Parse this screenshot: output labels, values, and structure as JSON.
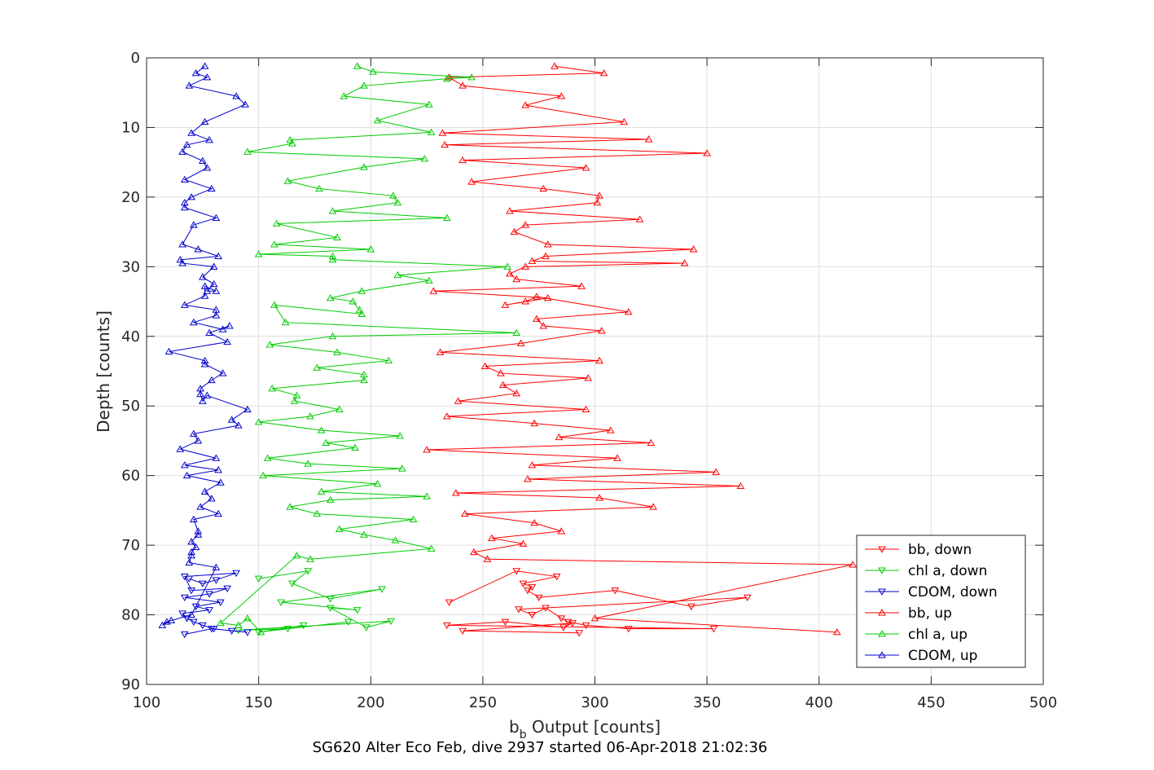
{
  "chart_data": {
    "type": "line",
    "title": "SG620 Alter Eco Feb, dive 2937 started 06-Apr-2018 21:02:36",
    "xlabel_main": "b",
    "xlabel_sub": "b",
    "xlabel_rest": " Output [counts]",
    "ylabel": "Depth [counts]",
    "xlim": [
      100,
      500
    ],
    "ylim": [
      0,
      90
    ],
    "y_reversed": true,
    "grid": true,
    "legend_position": "bottom-right",
    "x_ticks": [
      "100",
      "150",
      "200",
      "250",
      "300",
      "350",
      "400",
      "450",
      "500"
    ],
    "y_ticks": [
      "0",
      "10",
      "20",
      "30",
      "40",
      "50",
      "60",
      "70",
      "80",
      "90"
    ],
    "series": [
      {
        "name": "bb, down",
        "color": "#ff0000",
        "marker": "triangle-down",
        "x": [
          235,
          265,
          283,
          268,
          272,
          270,
          275,
          309,
          343,
          368,
          266,
          272,
          278,
          285,
          288,
          296,
          315,
          353,
          234,
          260,
          286,
          290,
          241,
          293
        ],
        "y": [
          78.2,
          73.7,
          74.5,
          75.5,
          76,
          76.5,
          77.5,
          76.5,
          78.8,
          77.5,
          79.2,
          80,
          79,
          80.5,
          81,
          81.5,
          82,
          82,
          81.5,
          81,
          81.8,
          81.2,
          82.3,
          82.6
        ]
      },
      {
        "name": "chl a, down",
        "color": "#00cc00",
        "marker": "triangle-down",
        "x": [
          150,
          172,
          165,
          182,
          205,
          160,
          194,
          182,
          198,
          209,
          141,
          163,
          170,
          150,
          190
        ],
        "y": [
          74.8,
          73.7,
          75.5,
          77.7,
          76.3,
          78.2,
          79.3,
          79,
          81.8,
          80.9,
          82.2,
          82,
          81.5,
          82.5,
          81
        ]
      },
      {
        "name": "CDOM, down",
        "color": "#0000cc",
        "marker": "triangle-down",
        "x": [
          119,
          125,
          131,
          140,
          117,
          120,
          136,
          128,
          117,
          133,
          122,
          128,
          116,
          118,
          121,
          125,
          130,
          138,
          145,
          129,
          117
        ],
        "y": [
          74.8,
          75.5,
          75,
          74,
          74.5,
          76.5,
          76.2,
          77,
          77.5,
          78.2,
          78.8,
          79.3,
          79.8,
          80.5,
          81,
          81.5,
          82,
          82.3,
          82.5,
          82,
          82.8
        ]
      },
      {
        "name": "bb, up",
        "color": "#ff0000",
        "marker": "triangle-up",
        "x": [
          282,
          304,
          235,
          241,
          285,
          269,
          313,
          232,
          324,
          233,
          350,
          241,
          296,
          245,
          277,
          302,
          301,
          262,
          320,
          269,
          264,
          279,
          344,
          278,
          272,
          340,
          269,
          262,
          265,
          294,
          228,
          279,
          260,
          269,
          274,
          315,
          274,
          277,
          303,
          267,
          231,
          302,
          251,
          258,
          297,
          259,
          265,
          239,
          296,
          234,
          273,
          307,
          284,
          325,
          225,
          310,
          272,
          354,
          270,
          365,
          238,
          302,
          326,
          242,
          273,
          285,
          254,
          268,
          246,
          252,
          415,
          300,
          408
        ],
        "y": [
          1.2,
          2.2,
          2.8,
          4,
          5.5,
          6.8,
          9.2,
          10.8,
          11.7,
          12.5,
          13.7,
          14.7,
          15.8,
          17.8,
          18.8,
          19.8,
          20.8,
          22,
          23.2,
          24,
          25,
          26.8,
          27.5,
          28.5,
          29.2,
          29.5,
          30,
          31,
          31.8,
          32.8,
          33.5,
          34.5,
          35.5,
          35,
          34.3,
          36.5,
          37.5,
          38.5,
          39.2,
          41,
          42.3,
          43.5,
          44.3,
          45.3,
          46,
          47,
          48.2,
          49.3,
          50.5,
          51.5,
          52.5,
          53.5,
          54.5,
          55.3,
          56.3,
          57.5,
          58.5,
          59.5,
          60.5,
          61.5,
          62.5,
          63.2,
          64.5,
          65.5,
          66.8,
          68,
          69,
          69.8,
          71,
          72,
          72.8,
          80.5,
          82.5
        ]
      },
      {
        "name": "chl a, up",
        "color": "#00cc00",
        "marker": "triangle-up",
        "x": [
          194,
          201,
          245,
          234,
          197,
          188,
          226,
          203,
          227,
          164,
          165,
          145,
          224,
          197,
          163,
          177,
          210,
          212,
          183,
          234,
          158,
          185,
          157,
          200,
          150,
          183,
          183,
          261,
          212,
          226,
          196,
          182,
          192,
          195,
          196,
          157,
          162,
          265,
          183,
          155,
          185,
          208,
          176,
          197,
          197,
          156,
          167,
          166,
          186,
          173,
          150,
          178,
          213,
          180,
          193,
          154,
          172,
          214,
          152,
          203,
          178,
          225,
          182,
          164,
          176,
          219,
          186,
          197,
          211,
          227,
          173,
          167,
          133,
          141,
          145,
          151
        ],
        "y": [
          1.2,
          2,
          2.8,
          3,
          4,
          5.5,
          6.7,
          9,
          10.7,
          11.8,
          12.3,
          13.5,
          14.5,
          15.7,
          17.7,
          18.8,
          19.8,
          20.8,
          22,
          23,
          23.8,
          25.8,
          26.8,
          27.5,
          28.2,
          28.5,
          29,
          30,
          31.2,
          32,
          33.5,
          34.5,
          35,
          36.2,
          36.8,
          35.5,
          38,
          39.5,
          40,
          41.2,
          42.3,
          43.5,
          44.5,
          45.5,
          46.3,
          47.5,
          48.5,
          49.3,
          50.5,
          51.5,
          52.3,
          53.5,
          54.3,
          55.3,
          56,
          57.5,
          58.3,
          59,
          60,
          61.2,
          62.3,
          63,
          63.5,
          64.5,
          65.5,
          66.3,
          67.7,
          68.5,
          69.3,
          70.5,
          72,
          71.5,
          81.2,
          81.5,
          80.5,
          82.5
        ]
      },
      {
        "name": "CDOM, up",
        "color": "#0000cc",
        "marker": "triangle-up",
        "x": [
          126,
          122,
          127,
          119,
          140,
          144,
          126,
          120,
          128,
          118,
          116,
          125,
          127,
          117,
          129,
          120,
          117,
          117,
          131,
          121,
          116,
          123,
          132,
          115,
          116,
          130,
          125,
          130,
          127,
          131,
          126,
          126,
          117,
          131,
          131,
          121,
          134,
          137,
          128,
          136,
          110,
          126,
          126,
          134,
          129,
          124,
          124,
          125,
          127,
          145,
          138,
          141,
          121,
          123,
          115,
          131,
          117,
          132,
          118,
          133,
          126,
          129,
          124,
          132,
          121,
          123,
          123,
          120,
          122,
          120,
          120,
          119,
          131,
          120,
          109,
          107,
          111
        ],
        "y": [
          1.2,
          2.2,
          2.8,
          4,
          5.5,
          6.7,
          9.2,
          10.8,
          11.8,
          12.5,
          13.5,
          14.8,
          15.8,
          17.5,
          18.8,
          20,
          20.8,
          21.5,
          23,
          24,
          26.8,
          27.5,
          28.5,
          29,
          29.5,
          30,
          31.5,
          32.5,
          33.5,
          33.5,
          32.8,
          34.2,
          35.5,
          36.2,
          37,
          38,
          39,
          38.5,
          39.5,
          40.8,
          42.2,
          43.5,
          44,
          45.3,
          46.3,
          47.5,
          48.3,
          49.3,
          48.5,
          50.5,
          52,
          52.8,
          54,
          55,
          56.2,
          57.5,
          58.5,
          59.2,
          60,
          61,
          62.3,
          63.3,
          64.5,
          65.5,
          66.3,
          68,
          68.5,
          69.5,
          70.3,
          71,
          71.5,
          72.5,
          73.2,
          80,
          81,
          81.5,
          80.8
        ]
      }
    ]
  }
}
